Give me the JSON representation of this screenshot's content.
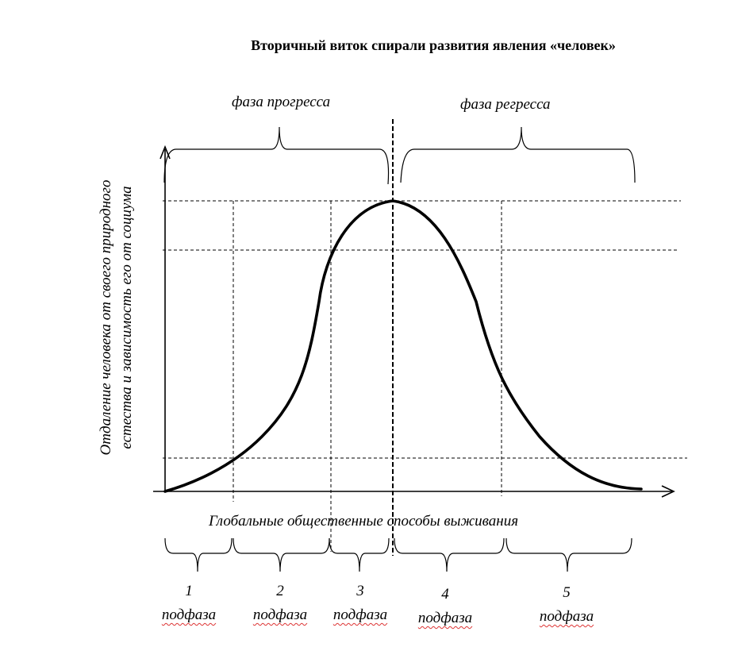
{
  "title": "Вторичный виток спирали развития явления «человек»",
  "phase_progress": "фаза прогресса",
  "phase_regress": "фаза регресса",
  "x_axis_label": "Глобальные общественные способы выживания",
  "y_axis_label_line1": "Отдаление человека от своего природного",
  "y_axis_label_line2": "естества и зависимость его от социума",
  "subphases": [
    {
      "number": "1",
      "word": "подфаза"
    },
    {
      "number": "2",
      "word": "подфаза"
    },
    {
      "number": "3",
      "word": "подфаза"
    },
    {
      "number": "4",
      "word": "подфаза"
    },
    {
      "number": "5",
      "word": "подфаза"
    }
  ]
}
